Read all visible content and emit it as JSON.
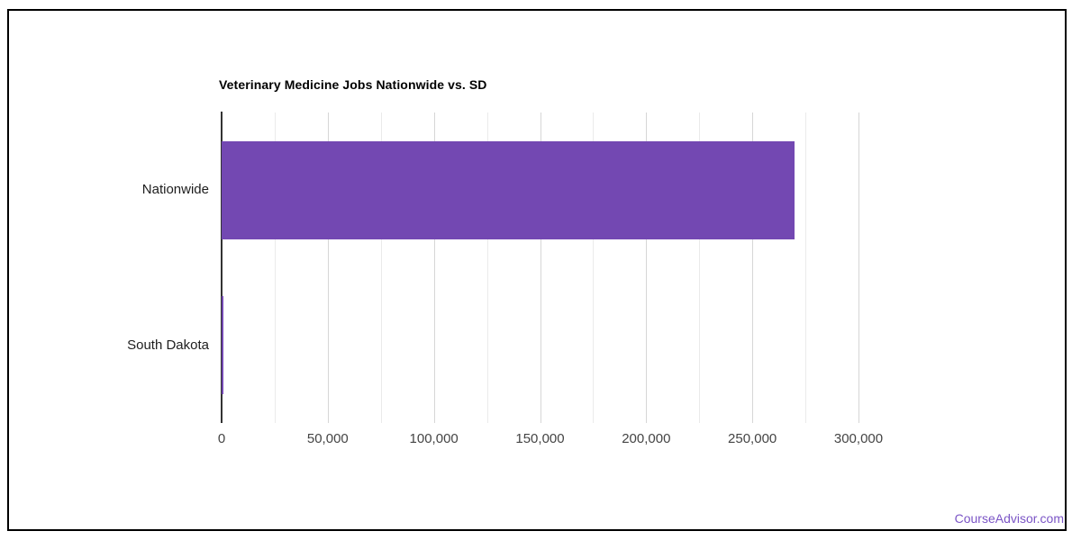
{
  "chart_data": {
    "type": "bar",
    "orientation": "horizontal",
    "title": "Veterinary Medicine Jobs Nationwide vs. SD",
    "categories": [
      "Nationwide",
      "South Dakota"
    ],
    "values": [
      270000,
      700
    ],
    "xlabel": "",
    "ylabel": "",
    "xlim": [
      0,
      300000
    ],
    "x_major_step": 50000,
    "x_minor_step": 25000,
    "x_major_tick_labels": [
      "0",
      "50,000",
      "100,000",
      "150,000",
      "200,000",
      "250,000",
      "300,000"
    ],
    "grid": true,
    "legend": "none",
    "bar_color": "#7348b2"
  },
  "branding": {
    "watermark": "CourseAdvisor.com",
    "watermark_color": "#7b55c6"
  },
  "colors": {
    "background": "#ffffff",
    "border": "#000000",
    "title": "#000000",
    "major_grid": "#d6d6d6",
    "minor_grid": "#eaeaea",
    "axis": "#333333",
    "category_label": "#1d1d1d",
    "tick_label": "#444444"
  }
}
